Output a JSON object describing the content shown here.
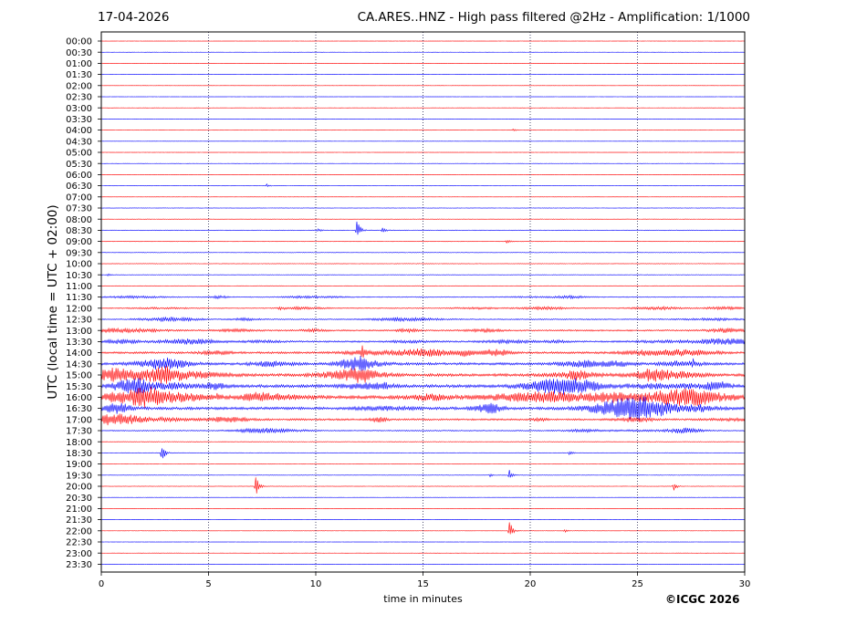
{
  "header": {
    "date": "17-04-2026",
    "title": "CA.ARES..HNZ - High pass filtered @2Hz - Amplification: 1/1000"
  },
  "footer": {
    "copyright": "©ICGC 2026"
  },
  "chart_data": {
    "type": "line",
    "title": "CA.ARES..HNZ - High pass filtered @2Hz - Amplification: 1/1000",
    "xlabel": "time in minutes",
    "ylabel": "UTC (local time = UTC + 02:00)",
    "xlim": [
      0,
      30
    ],
    "x_ticks": [
      0,
      5,
      10,
      15,
      20,
      25,
      30
    ],
    "y_ticks": [
      "00:00",
      "00:30",
      "01:00",
      "01:30",
      "02:00",
      "02:30",
      "03:00",
      "03:30",
      "04:00",
      "04:30",
      "05:00",
      "05:30",
      "06:00",
      "06:30",
      "07:00",
      "07:30",
      "08:00",
      "08:30",
      "09:00",
      "09:30",
      "10:00",
      "10:30",
      "11:00",
      "11:30",
      "12:00",
      "12:30",
      "13:00",
      "13:30",
      "14:00",
      "14:30",
      "15:00",
      "15:30",
      "16:00",
      "16:30",
      "17:00",
      "17:30",
      "18:00",
      "18:30",
      "19:00",
      "19:30",
      "20:00",
      "20:30",
      "21:00",
      "21:30",
      "22:00",
      "22:30",
      "23:00",
      "23:30"
    ],
    "trace_colors": [
      "#ff0000",
      "#0000ff"
    ],
    "grid": "vertical dotted lines at 5-minute intervals",
    "noise_level": [
      0.2,
      0.2,
      0.2,
      0.2,
      0.2,
      0.2,
      0.2,
      0.2,
      0.3,
      0.2,
      0.2,
      0.2,
      0.2,
      0.3,
      0.2,
      0.3,
      0.4,
      0.6,
      0.5,
      0.5,
      0.5,
      0.5,
      0.5,
      0.8,
      0.9,
      1.0,
      1.3,
      1.5,
      1.8,
      2.2,
      2.6,
      2.8,
      3.0,
      2.4,
      1.6,
      1.0,
      0.6,
      0.5,
      0.4,
      0.4,
      0.3,
      0.3,
      0.2,
      0.2,
      0.3,
      0.2,
      0.2,
      0.2
    ],
    "events": [
      {
        "row": "04:00",
        "minute": 19.2,
        "amplitude": 1.5
      },
      {
        "row": "06:30",
        "minute": 7.7,
        "amplitude": 2
      },
      {
        "row": "08:30",
        "minute": 11.9,
        "amplitude": 16
      },
      {
        "row": "08:30",
        "minute": 10.1,
        "amplitude": 2
      },
      {
        "row": "08:30",
        "minute": 13.1,
        "amplitude": 3
      },
      {
        "row": "09:00",
        "minute": 18.9,
        "amplitude": 2.5
      },
      {
        "row": "10:30",
        "minute": 0.3,
        "amplitude": 2
      },
      {
        "row": "12:00",
        "minute": 8.3,
        "amplitude": 2
      },
      {
        "row": "14:00",
        "minute": 12.1,
        "amplitude": 12
      },
      {
        "row": "14:30",
        "minute": 12.1,
        "amplitude": 8
      },
      {
        "row": "14:30",
        "minute": 27.6,
        "amplitude": 3
      },
      {
        "row": "16:00",
        "minute": 5.4,
        "amplitude": 4
      },
      {
        "row": "18:30",
        "minute": 2.8,
        "amplitude": 14
      },
      {
        "row": "18:30",
        "minute": 21.8,
        "amplitude": 3
      },
      {
        "row": "19:30",
        "minute": 19.0,
        "amplitude": 8
      },
      {
        "row": "19:30",
        "minute": 18.1,
        "amplitude": 2
      },
      {
        "row": "20:00",
        "minute": 7.2,
        "amplitude": 14
      },
      {
        "row": "20:00",
        "minute": 26.7,
        "amplitude": 5
      },
      {
        "row": "22:00",
        "minute": 19.0,
        "amplitude": 16
      },
      {
        "row": "22:00",
        "minute": 21.6,
        "amplitude": 2
      }
    ]
  }
}
